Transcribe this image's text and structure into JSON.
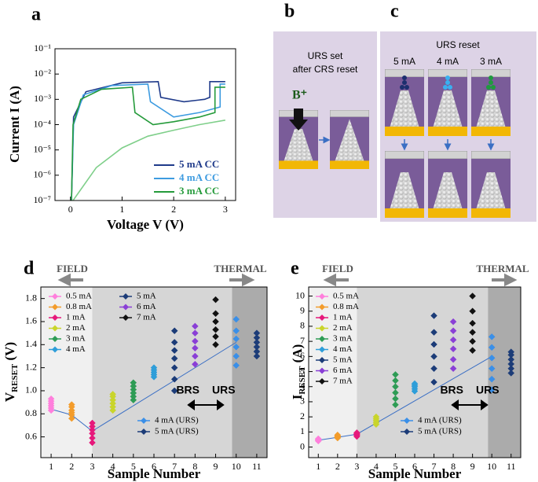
{
  "chart_data": [
    {
      "type": "line",
      "panel_label": "a",
      "xlabel": "Voltage V (V)",
      "ylabel": "Current I (A)",
      "xlim": [
        -0.3,
        3.2
      ],
      "xticks": [
        0,
        1,
        2,
        3
      ],
      "ylim": [
        1e-07,
        0.1
      ],
      "ylog": true,
      "yticks": [
        {
          "value": 1e-07,
          "label": "10⁻⁷"
        },
        {
          "value": 1e-06,
          "label": "10⁻⁶"
        },
        {
          "value": 1e-05,
          "label": "10⁻⁵"
        },
        {
          "value": 0.0001,
          "label": "10⁻⁴"
        },
        {
          "value": 0.001,
          "label": "10⁻³"
        },
        {
          "value": 0.01,
          "label": "10⁻²"
        },
        {
          "value": 0.1,
          "label": "10⁻¹"
        }
      ],
      "series": [
        {
          "name": "5 mA CC",
          "color": "#1f3a8a",
          "x": [
            0.02,
            0.06,
            0.3,
            1.0,
            1.7,
            1.75,
            2.2,
            2.6,
            2.7,
            2.7,
            3.0
          ],
          "values": [
            1e-07,
            0.0002,
            0.002,
            0.0045,
            0.005,
            0.0012,
            0.0008,
            0.001,
            0.0012,
            0.005,
            0.005
          ]
        },
        {
          "name": "4 mA CC",
          "color": "#3d9be0",
          "x": [
            0.02,
            0.06,
            0.25,
            0.8,
            1.5,
            1.55,
            2.0,
            2.5,
            2.9,
            2.9,
            3.0
          ],
          "values": [
            1e-07,
            0.0001,
            0.0015,
            0.0035,
            0.004,
            0.0008,
            0.0002,
            0.0003,
            0.0005,
            0.004,
            0.004
          ]
        },
        {
          "name": "3 mA CC",
          "color": "#249a3a",
          "x": [
            0.02,
            0.05,
            0.2,
            0.6,
            1.2,
            1.25,
            1.6,
            2.0,
            2.5,
            2.8,
            2.8,
            3.0
          ],
          "values": [
            1e-07,
            0.0001,
            0.001,
            0.0025,
            0.003,
            0.0003,
            0.0001,
            0.00013,
            0.0002,
            0.0003,
            0.003,
            0.003
          ]
        },
        {
          "name": null,
          "color": "#7fcf8a",
          "x": [
            0.05,
            0.5,
            1.0,
            1.5,
            2.0,
            2.5,
            3.0
          ],
          "values": [
            1e-07,
            2e-06,
            1.2e-05,
            3.5e-05,
            6e-05,
            0.0001,
            0.00015
          ]
        }
      ]
    },
    {
      "type": "scatter",
      "panel_label": "d",
      "xlabel": "Sample Number",
      "ylabel": {
        "text": "V",
        "sub": "RESET",
        "unit": " (V)"
      },
      "xlim": [
        0.5,
        11.5
      ],
      "xticks": [
        1,
        2,
        3,
        4,
        5,
        6,
        7,
        8,
        9,
        10,
        11
      ],
      "ylim": [
        0.42,
        1.9
      ],
      "yticks": [
        0.6,
        0.8,
        {
          "value": 1.0,
          "label": "1.0"
        },
        1.2,
        1.4,
        1.6,
        1.8
      ],
      "regions": [
        {
          "from": 0.5,
          "to": 3,
          "color": "#f0f0f0"
        },
        {
          "from": 3,
          "to": 9.8,
          "color": "#d6d6d6"
        },
        {
          "from": 9.8,
          "to": 11.5,
          "color": "#ababab"
        }
      ],
      "annotations": {
        "field": "FIELD",
        "thermal": "THERMAL",
        "brs": "BRS",
        "urs": "URS"
      },
      "trend": {
        "color": "#3b6fc4",
        "x": [
          1,
          2,
          3,
          10
        ],
        "values": [
          0.84,
          0.79,
          0.65,
          1.42
        ]
      },
      "series": [
        {
          "name": "0.5 mA",
          "color": "#ff7fdc",
          "x": [
            1,
            1,
            1,
            1,
            1,
            1
          ],
          "values": [
            0.83,
            0.85,
            0.87,
            0.89,
            0.91,
            0.93
          ]
        },
        {
          "name": "0.8 mA",
          "color": "#f39c2b",
          "x": [
            2,
            2,
            2,
            2,
            2,
            2
          ],
          "values": [
            0.76,
            0.79,
            0.81,
            0.83,
            0.86,
            0.88
          ]
        },
        {
          "name": "1 mA",
          "color": "#e6197b",
          "x": [
            3,
            3,
            3,
            3,
            3,
            3
          ],
          "values": [
            0.55,
            0.59,
            0.63,
            0.66,
            0.69,
            0.72
          ]
        },
        {
          "name": "2 mA",
          "color": "#c9d52b",
          "x": [
            4,
            4,
            4,
            4,
            4,
            4
          ],
          "values": [
            0.83,
            0.86,
            0.89,
            0.92,
            0.95,
            0.97
          ]
        },
        {
          "name": "3 mA",
          "color": "#2e9c55",
          "x": [
            5,
            5,
            5,
            5,
            5,
            5
          ],
          "values": [
            0.92,
            0.95,
            0.98,
            1.01,
            1.04,
            1.07
          ]
        },
        {
          "name": "4 mA",
          "color": "#2f9ed9",
          "x": [
            6,
            6,
            6,
            6,
            6
          ],
          "values": [
            1.12,
            1.14,
            1.16,
            1.18,
            1.2
          ]
        },
        {
          "name": "5 mA",
          "color": "#1c3c78",
          "x": [
            7,
            7,
            7,
            7,
            7,
            7,
            7
          ],
          "values": [
            1.0,
            1.1,
            1.2,
            1.28,
            1.35,
            1.42,
            1.52
          ]
        },
        {
          "name": "6 mA",
          "color": "#8a3fd6",
          "x": [
            8,
            8,
            8,
            8,
            8,
            8
          ],
          "values": [
            1.23,
            1.3,
            1.37,
            1.43,
            1.5,
            1.56
          ]
        },
        {
          "name": "7 mA",
          "color": "#111111",
          "x": [
            9,
            9,
            9,
            9,
            9,
            9
          ],
          "values": [
            1.4,
            1.47,
            1.53,
            1.6,
            1.67,
            1.79
          ]
        },
        {
          "name": "4 mA (URS)",
          "color": "#3a8fe8",
          "x": [
            10,
            10,
            10,
            10,
            10,
            10
          ],
          "values": [
            1.22,
            1.3,
            1.38,
            1.45,
            1.52,
            1.62
          ]
        },
        {
          "name": "5 mA (URS)",
          "color": "#1c3c78",
          "x": [
            11,
            11,
            11,
            11,
            11,
            11
          ],
          "values": [
            1.3,
            1.34,
            1.38,
            1.42,
            1.46,
            1.5
          ]
        }
      ]
    },
    {
      "type": "scatter",
      "panel_label": "e",
      "xlabel": "Sample Number",
      "ylabel": {
        "text": "I",
        "sub": "RESET",
        "unit": " (A)"
      },
      "xlim": [
        0.5,
        11.5
      ],
      "xticks": [
        1,
        2,
        3,
        4,
        5,
        6,
        7,
        8,
        9,
        10,
        11
      ],
      "ylim": [
        -0.7,
        10.6
      ],
      "yticks": [
        0,
        1,
        2,
        3,
        4,
        5,
        6,
        7,
        8,
        9,
        10
      ],
      "regions": [
        {
          "from": 0.5,
          "to": 3,
          "color": "#f0f0f0"
        },
        {
          "from": 3,
          "to": 9.8,
          "color": "#d6d6d6"
        },
        {
          "from": 9.8,
          "to": 11.5,
          "color": "#ababab"
        }
      ],
      "annotations": {
        "field": "FIELD",
        "thermal": "THERMAL",
        "brs": "BRS",
        "urs": "URS"
      },
      "trend": {
        "color": "#3b6fc4",
        "x": [
          1,
          2,
          3,
          10
        ],
        "values": [
          0.45,
          0.65,
          0.85,
          6.0
        ]
      },
      "series": [
        {
          "name": "0.5 mA",
          "color": "#ff7fdc",
          "x": [
            1,
            1,
            1,
            1,
            1
          ],
          "values": [
            0.4,
            0.44,
            0.48,
            0.52,
            0.55
          ]
        },
        {
          "name": "0.8 mA",
          "color": "#f39c2b",
          "x": [
            2,
            2,
            2,
            2,
            2
          ],
          "values": [
            0.6,
            0.65,
            0.7,
            0.75,
            0.8
          ]
        },
        {
          "name": "1 mA",
          "color": "#e6197b",
          "x": [
            3,
            3,
            3,
            3,
            3
          ],
          "values": [
            0.7,
            0.78,
            0.85,
            0.9,
            0.95
          ]
        },
        {
          "name": "2 mA",
          "color": "#c9d52b",
          "x": [
            4,
            4,
            4,
            4,
            4
          ],
          "values": [
            1.5,
            1.62,
            1.75,
            1.87,
            2.0
          ]
        },
        {
          "name": "3 mA",
          "color": "#2e9c55",
          "x": [
            5,
            5,
            5,
            5,
            5,
            5
          ],
          "values": [
            2.8,
            3.2,
            3.6,
            4.0,
            4.4,
            4.8
          ]
        },
        {
          "name": "4 mA",
          "color": "#2f9ed9",
          "x": [
            6,
            6,
            6,
            6,
            6
          ],
          "values": [
            3.7,
            3.85,
            4.0,
            4.1,
            4.2
          ]
        },
        {
          "name": "5 mA",
          "color": "#1c3c78",
          "x": [
            7,
            7,
            7,
            7,
            7,
            7
          ],
          "values": [
            4.3,
            5.2,
            6.0,
            6.8,
            7.6,
            8.7
          ]
        },
        {
          "name": "6 mA",
          "color": "#8a3fd6",
          "x": [
            8,
            8,
            8,
            8,
            8,
            8
          ],
          "values": [
            5.2,
            5.8,
            6.5,
            7.1,
            7.7,
            8.3
          ]
        },
        {
          "name": "7 mA",
          "color": "#111111",
          "x": [
            9,
            9,
            9,
            9,
            9,
            9
          ],
          "values": [
            6.4,
            7.0,
            7.6,
            8.2,
            9.0,
            10.0
          ]
        },
        {
          "name": "4 mA (URS)",
          "color": "#3a8fe8",
          "x": [
            10,
            10,
            10,
            10,
            10,
            10
          ],
          "values": [
            3.8,
            4.5,
            5.2,
            5.9,
            6.6,
            7.3
          ]
        },
        {
          "name": "5 mA (URS)",
          "color": "#1c3c78",
          "x": [
            11,
            11,
            11,
            11,
            11,
            11
          ],
          "values": [
            4.9,
            5.2,
            5.5,
            5.8,
            6.1,
            6.3
          ]
        }
      ]
    }
  ],
  "diagrams": {
    "b": {
      "label": "b",
      "text": [
        "URS set",
        "after CRS reset"
      ],
      "ion": "B⁺"
    },
    "c": {
      "label": "c",
      "title": "URS reset",
      "columns": [
        "5 mA",
        "4 mA",
        "3 mA"
      ]
    }
  }
}
